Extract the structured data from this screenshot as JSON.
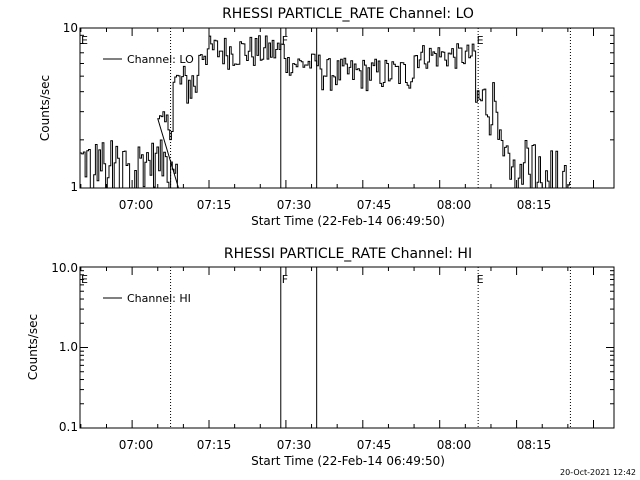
{
  "chart_data": [
    {
      "type": "line",
      "title": "RHESSI PARTICLE_RATE Channel: LO",
      "xlabel": "Start Time (22-Feb-14 06:49:50)",
      "ylabel": "Counts/sec",
      "yscale": "log",
      "ylim": [
        1,
        10
      ],
      "y_tick_labels": [
        "1",
        "10"
      ],
      "x_tick_labels": [
        "07:00",
        "07:15",
        "07:30",
        "07:45",
        "08:00",
        "08:15"
      ],
      "xlim": [
        "06:49:50",
        "08:34:00"
      ],
      "legend": {
        "placement": "top-left",
        "entries": [
          "Channel: LO"
        ]
      },
      "flag_labels": [
        {
          "text": "E",
          "time": "06:49:50"
        },
        {
          "text": "F",
          "time": "07:29:00"
        },
        {
          "text": "E",
          "time": "08:07:00"
        }
      ],
      "solid_markers": [
        "07:29:00",
        "07:36:00"
      ],
      "dotted_markers": [
        "07:07:30",
        "08:07:30",
        "08:25:30"
      ],
      "series": [
        {
          "name": "Channel: LO",
          "segments": [
            {
              "t_start": "06:49:50",
              "t_end": "07:09:00",
              "level": 2.0,
              "jitter": [
                1,
                2
              ],
              "dropouts": true
            },
            {
              "t_start": "07:05:00",
              "t_end": "07:08:00",
              "level": 2.7,
              "jitter": [
                2,
                3
              ]
            },
            {
              "t_start": "07:08:00",
              "t_end": "07:13:00",
              "level": 4.5,
              "jitter": [
                3,
                6
              ]
            },
            {
              "t_start": "07:13:00",
              "t_end": "07:30:00",
              "level": 7.0,
              "jitter": [
                5.5,
                9
              ]
            },
            {
              "t_start": "07:30:00",
              "t_end": "07:37:00",
              "level": 6.0,
              "jitter": [
                5,
                7
              ]
            },
            {
              "t_start": "07:37:00",
              "t_end": "07:55:00",
              "level": 5.5,
              "jitter": [
                4,
                6.5
              ]
            },
            {
              "t_start": "07:55:00",
              "t_end": "08:07:00",
              "level": 6.5,
              "jitter": [
                5.5,
                8
              ]
            },
            {
              "t_start": "08:07:00",
              "t_end": "08:12:00",
              "level": 3.5,
              "jitter": [
                2,
                5
              ]
            },
            {
              "t_start": "08:12:00",
              "t_end": "08:25:30",
              "level": 1.8,
              "jitter": [
                1,
                2
              ],
              "dropouts": true
            }
          ]
        }
      ]
    },
    {
      "type": "line",
      "title": "RHESSI PARTICLE_RATE Channel: HI",
      "xlabel": "Start Time (22-Feb-14 06:49:50)",
      "ylabel": "Counts/sec",
      "yscale": "log",
      "ylim": [
        0.1,
        10
      ],
      "y_tick_labels": [
        "10.0",
        "1.0",
        "0.1"
      ],
      "x_tick_labels": [
        "07:00",
        "07:15",
        "07:30",
        "07:45",
        "08:00",
        "08:15"
      ],
      "xlim": [
        "06:49:50",
        "08:34:00"
      ],
      "legend": {
        "placement": "top-left",
        "entries": [
          "Channel: HI"
        ]
      },
      "flag_labels": [
        {
          "text": "E",
          "time": "06:49:50"
        },
        {
          "text": "F",
          "time": "07:29:00"
        },
        {
          "text": "E",
          "time": "08:07:00"
        }
      ],
      "solid_markers": [
        "07:29:00",
        "07:36:00"
      ],
      "dotted_markers": [
        "07:07:30",
        "08:07:30",
        "08:25:30"
      ],
      "series": [
        {
          "name": "Channel: HI",
          "points": []
        }
      ]
    }
  ],
  "footer": {
    "timestamp": "20-Oct-2021 12:42"
  }
}
